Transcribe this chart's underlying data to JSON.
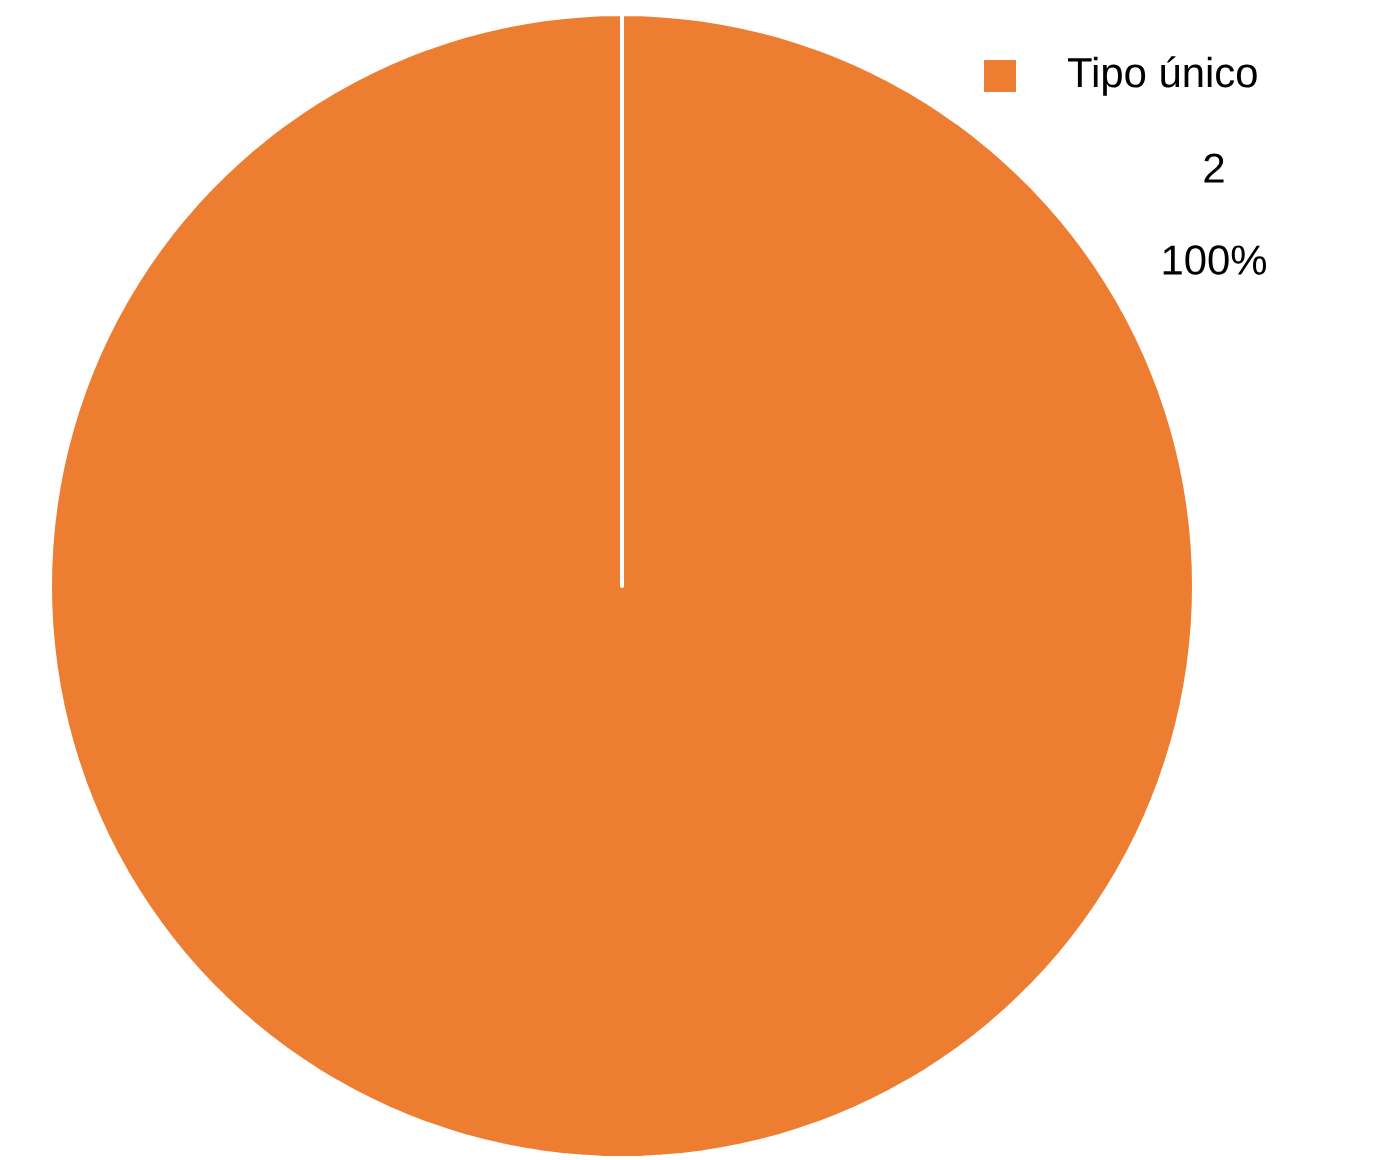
{
  "chart_data": {
    "type": "pie",
    "categories": [
      "Tipo único"
    ],
    "values": [
      2
    ],
    "colors": [
      "#ed7d31"
    ],
    "data_labels": true,
    "annotations": [
      "100%"
    ]
  }
}
